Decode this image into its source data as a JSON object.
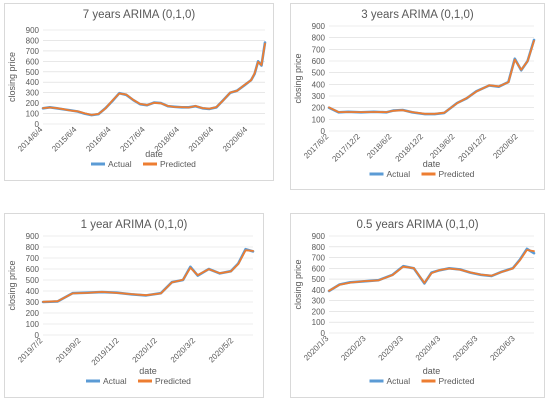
{
  "colors": {
    "actual": "#5b9bd5",
    "predicted": "#ed7d31",
    "grid": "#d9d9d9",
    "text": "#595959",
    "border": "#d9d9d9"
  },
  "chart_data": [
    {
      "type": "line",
      "title": "7 years ARIMA (0,1,0)",
      "xlabel": "date",
      "ylabel": "closing price",
      "ylim": [
        0,
        900
      ],
      "yticks": [
        "0",
        "100",
        "200",
        "300",
        "400",
        "500",
        "600",
        "700",
        "800",
        "900"
      ],
      "xtick_labels": [
        "2014/6/4",
        "2015/6/4",
        "2016/6/4",
        "2017/6/4",
        "2018/6/4",
        "2019/6/4",
        "2020/6/4"
      ],
      "x_range": [
        0,
        6.4
      ],
      "grid": true,
      "legend": "bottom",
      "series": [
        {
          "name": "Actual",
          "x": [
            0,
            0.2,
            0.4,
            0.6,
            0.8,
            1.0,
            1.2,
            1.4,
            1.6,
            1.8,
            2.0,
            2.2,
            2.4,
            2.6,
            2.8,
            3.0,
            3.2,
            3.4,
            3.6,
            3.8,
            4.0,
            4.2,
            4.4,
            4.6,
            4.8,
            5.0,
            5.2,
            5.4,
            5.6,
            5.8,
            6.0,
            6.1,
            6.2,
            6.3,
            6.4
          ],
          "values": [
            150,
            160,
            150,
            140,
            130,
            120,
            100,
            85,
            95,
            150,
            220,
            295,
            280,
            230,
            190,
            180,
            205,
            200,
            170,
            165,
            160,
            160,
            170,
            150,
            145,
            160,
            230,
            300,
            320,
            370,
            420,
            480,
            600,
            560,
            780
          ]
        },
        {
          "name": "Predicted",
          "x": [
            0,
            0.2,
            0.4,
            0.6,
            0.8,
            1.0,
            1.2,
            1.4,
            1.6,
            1.8,
            2.0,
            2.2,
            2.4,
            2.6,
            2.8,
            3.0,
            3.2,
            3.4,
            3.6,
            3.8,
            4.0,
            4.2,
            4.4,
            4.6,
            4.8,
            5.0,
            5.2,
            5.4,
            5.6,
            5.8,
            6.0,
            6.1,
            6.2,
            6.3,
            6.4
          ],
          "values": [
            152,
            158,
            152,
            142,
            128,
            122,
            102,
            87,
            97,
            148,
            225,
            292,
            282,
            232,
            192,
            182,
            203,
            198,
            172,
            163,
            162,
            158,
            172,
            152,
            147,
            162,
            228,
            302,
            318,
            372,
            418,
            485,
            595,
            565,
            770
          ]
        }
      ]
    },
    {
      "type": "line",
      "title": "3 years ARIMA (0,1,0)",
      "xlabel": "date",
      "ylabel": "closing price",
      "ylim": [
        0,
        900
      ],
      "yticks": [
        "0",
        "100",
        "200",
        "300",
        "400",
        "500",
        "600",
        "700",
        "800",
        "900"
      ],
      "xtick_labels": [
        "2017/6/2",
        "2017/12/2",
        "2018/6/2",
        "2018/12/2",
        "2019/6/2",
        "2019/12/2",
        "2020/6/2"
      ],
      "x_range": [
        0,
        6.4
      ],
      "grid": true,
      "legend": "bottom",
      "series": [
        {
          "name": "Actual",
          "x": [
            0,
            0.3,
            0.6,
            1.0,
            1.4,
            1.8,
            2.0,
            2.3,
            2.6,
            3.0,
            3.3,
            3.6,
            4.0,
            4.3,
            4.6,
            5.0,
            5.3,
            5.6,
            5.8,
            6.0,
            6.2,
            6.4
          ],
          "values": [
            200,
            160,
            165,
            160,
            165,
            160,
            175,
            180,
            160,
            145,
            145,
            155,
            240,
            280,
            340,
            390,
            380,
            420,
            620,
            520,
            600,
            780
          ]
        },
        {
          "name": "Predicted",
          "x": [
            0,
            0.3,
            0.6,
            1.0,
            1.4,
            1.8,
            2.0,
            2.3,
            2.6,
            3.0,
            3.3,
            3.6,
            4.0,
            4.3,
            4.6,
            5.0,
            5.3,
            5.6,
            5.8,
            6.0,
            6.2,
            6.4
          ],
          "values": [
            202,
            162,
            163,
            162,
            163,
            162,
            173,
            178,
            162,
            147,
            147,
            157,
            238,
            282,
            338,
            392,
            382,
            418,
            612,
            525,
            598,
            772
          ]
        }
      ]
    },
    {
      "type": "line",
      "title": "1 year ARIMA (0,1,0)",
      "xlabel": "date",
      "ylabel": "closing price",
      "ylim": [
        0,
        900
      ],
      "yticks": [
        "0",
        "100",
        "200",
        "300",
        "400",
        "500",
        "600",
        "700",
        "800",
        "900"
      ],
      "xtick_labels": [
        "2019/7/2",
        "2019/9/2",
        "2019/11/2",
        "2020/1/2",
        "2020/3/2",
        "2020/5/2"
      ],
      "x_range": [
        0,
        5.7
      ],
      "grid": true,
      "legend": "bottom",
      "series": [
        {
          "name": "Actual",
          "x": [
            0,
            0.4,
            0.8,
            1.2,
            1.6,
            2.0,
            2.4,
            2.8,
            3.2,
            3.5,
            3.8,
            4.0,
            4.2,
            4.5,
            4.8,
            5.1,
            5.3,
            5.5,
            5.7
          ],
          "values": [
            300,
            305,
            380,
            385,
            390,
            385,
            370,
            360,
            380,
            480,
            500,
            620,
            540,
            600,
            560,
            580,
            650,
            780,
            760
          ]
        },
        {
          "name": "Predicted",
          "x": [
            0,
            0.4,
            0.8,
            1.2,
            1.6,
            2.0,
            2.4,
            2.8,
            3.2,
            3.5,
            3.8,
            4.0,
            4.2,
            4.5,
            4.8,
            5.1,
            5.3,
            5.5,
            5.7
          ],
          "values": [
            302,
            307,
            378,
            383,
            392,
            383,
            372,
            362,
            378,
            478,
            502,
            612,
            545,
            598,
            562,
            578,
            645,
            770,
            765
          ]
        }
      ]
    },
    {
      "type": "line",
      "title": "0.5 years ARIMA (0,1,0)",
      "xlabel": "date",
      "ylabel": "closing price",
      "ylim": [
        0,
        900
      ],
      "yticks": [
        "0",
        "100",
        "200",
        "300",
        "400",
        "500",
        "600",
        "700",
        "800",
        "900"
      ],
      "xtick_labels": [
        "2020/1/3",
        "2020/2/3",
        "2020/3/3",
        "2020/4/3",
        "2020/5/3",
        "2020/6/3"
      ],
      "x_range": [
        0,
        5.8
      ],
      "grid": true,
      "legend": "bottom",
      "series": [
        {
          "name": "Actual",
          "x": [
            0,
            0.3,
            0.6,
            1.0,
            1.4,
            1.8,
            2.1,
            2.4,
            2.7,
            2.9,
            3.1,
            3.4,
            3.7,
            4.0,
            4.3,
            4.6,
            4.9,
            5.2,
            5.4,
            5.6,
            5.8
          ],
          "values": [
            390,
            450,
            470,
            480,
            490,
            540,
            620,
            600,
            460,
            560,
            580,
            600,
            590,
            560,
            540,
            530,
            570,
            600,
            680,
            780,
            740
          ]
        },
        {
          "name": "Predicted",
          "x": [
            0,
            0.3,
            0.6,
            1.0,
            1.4,
            1.8,
            2.1,
            2.4,
            2.7,
            2.9,
            3.1,
            3.4,
            3.7,
            4.0,
            4.3,
            4.6,
            4.9,
            5.2,
            5.4,
            5.6,
            5.8
          ],
          "values": [
            392,
            448,
            468,
            482,
            488,
            538,
            615,
            602,
            465,
            555,
            582,
            598,
            588,
            562,
            542,
            532,
            568,
            598,
            675,
            770,
            760
          ]
        }
      ]
    }
  ]
}
